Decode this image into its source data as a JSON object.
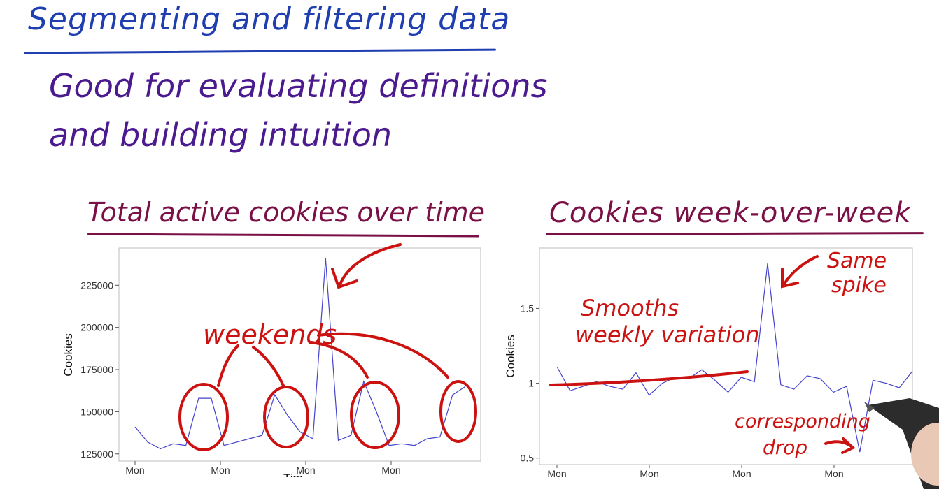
{
  "slide": {
    "title": "Segmenting and filtering data",
    "bullet_line1": "Good for evaluating definitions",
    "bullet_line2": "and building intuition",
    "colors": {
      "title": "#1f3fb0",
      "bullet": "#4b1a8f",
      "heading": "#7a1045",
      "annotation": "#cc1111",
      "series": "#4444cc"
    }
  },
  "left_heading": "Total active cookies over time",
  "right_heading": "Cookies week-over-week",
  "annotations": {
    "weekends": "weekends",
    "smooths_line1": "Smooths",
    "smooths_line2": "weekly variation",
    "same_line1": "Same",
    "same_line2": "spike",
    "corr_line1": "corresponding",
    "corr_line2": "drop"
  },
  "chart_data": [
    {
      "type": "line",
      "ylabel": "Cookies",
      "xlabel": "Tim",
      "x_tick_labels": [
        "Mon",
        "Mon",
        "Mon",
        "Mon"
      ],
      "y_ticks": [
        125000,
        150000,
        175000,
        200000,
        225000
      ],
      "ylim": [
        122000,
        245000
      ],
      "series": [
        {
          "values": [
            141000,
            132000,
            128000,
            131000,
            130000,
            158000,
            158000,
            130000,
            132000,
            134000,
            136000,
            160000,
            148000,
            138000,
            134000,
            241000,
            133000,
            136000,
            168000,
            150000,
            130000,
            131000,
            130000,
            134000,
            135000,
            160000,
            165000
          ]
        }
      ],
      "grid": false
    },
    {
      "type": "line",
      "ylabel": "Cookies",
      "x_tick_labels": [
        "Mon",
        "Mon",
        "Mon",
        "Mon"
      ],
      "y_ticks": [
        0.5,
        1.0,
        1.5
      ],
      "ylim": [
        0.48,
        1.88
      ],
      "series": [
        {
          "values": [
            1.11,
            0.95,
            0.98,
            1.01,
            0.98,
            0.96,
            1.07,
            0.92,
            1.0,
            1.04,
            1.03,
            1.09,
            1.02,
            0.94,
            1.04,
            1.01,
            1.8,
            0.99,
            0.96,
            1.05,
            1.03,
            0.94,
            0.98,
            0.54,
            1.02,
            1.0,
            0.97,
            1.08
          ]
        }
      ],
      "grid": false
    }
  ]
}
